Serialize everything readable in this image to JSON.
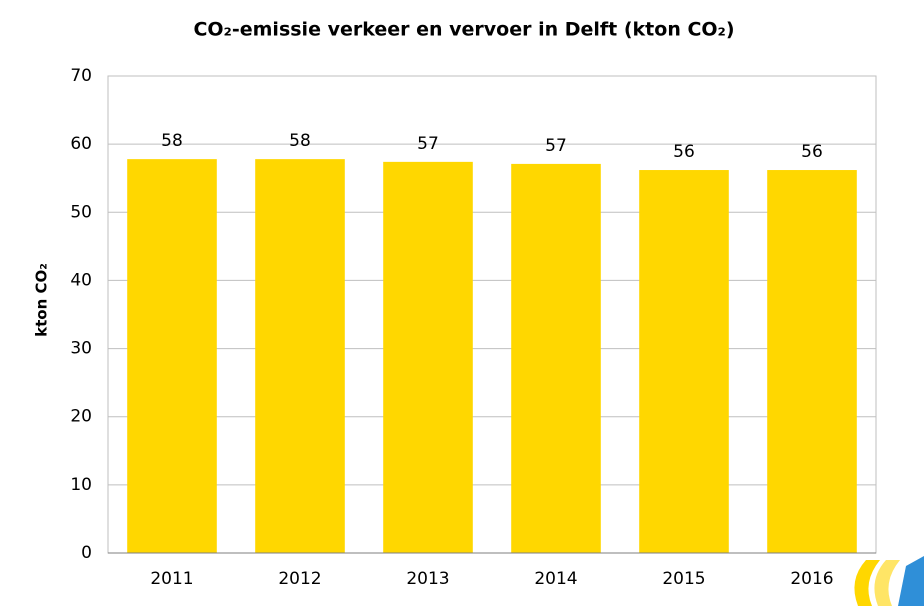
{
  "chart_data": {
    "type": "bar",
    "title": "CO₂-emissie verkeer en vervoer in Delft (kton CO₂)",
    "y_label": "kton CO₂",
    "categories": [
      "2011",
      "2012",
      "2013",
      "2014",
      "2015",
      "2016"
    ],
    "values": [
      57.8,
      57.8,
      57.4,
      57.1,
      56.2,
      56.2
    ],
    "value_labels": [
      "58",
      "58",
      "57",
      "57",
      "56",
      "56"
    ],
    "color": "#ffd700",
    "ylim": [
      0,
      70
    ],
    "yticks": [
      0,
      10,
      20,
      30,
      40,
      50,
      60,
      70
    ],
    "grid": true
  }
}
